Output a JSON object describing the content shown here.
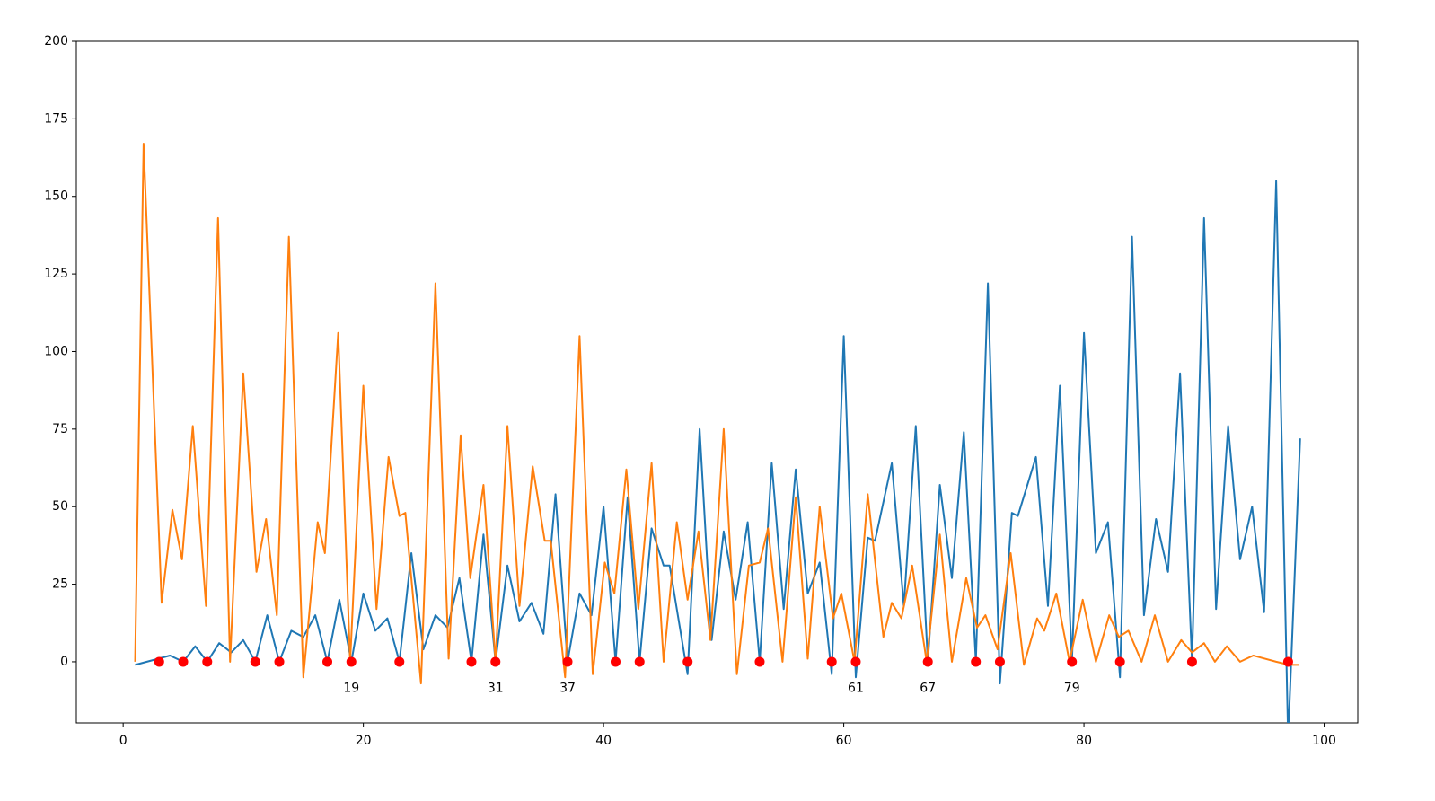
{
  "chart_data": {
    "type": "line",
    "xlim": [
      -3.9,
      102.8
    ],
    "ylim": [
      -19.7,
      200
    ],
    "xticks": [
      0,
      20,
      40,
      60,
      80,
      100
    ],
    "yticks": [
      0,
      25,
      50,
      75,
      100,
      125,
      150,
      175,
      200
    ],
    "series": [
      {
        "color": "#1f77b4",
        "x": [
          1,
          3.9,
          5,
          6,
          7,
          8,
          9,
          10,
          11,
          12,
          13,
          14,
          15,
          16,
          17,
          18,
          19,
          20,
          21,
          22,
          23,
          24,
          25,
          26,
          27,
          28,
          29,
          30,
          31,
          32,
          33,
          34,
          35,
          36,
          37,
          38,
          39,
          40,
          41,
          42,
          43,
          44,
          45,
          45.5,
          47,
          48,
          49,
          50,
          51,
          52,
          53,
          54,
          55,
          56,
          57,
          58,
          59,
          60,
          61,
          62,
          62.6,
          64,
          65,
          66,
          67,
          68,
          69,
          70,
          71,
          72,
          73,
          74,
          74.5,
          76,
          77,
          78,
          79,
          80,
          81,
          82,
          83,
          84,
          85,
          86,
          87,
          88,
          89,
          90,
          91,
          92,
          93,
          94,
          95,
          96,
          97,
          98
        ],
        "values": [
          -1,
          2,
          0,
          5,
          0,
          6,
          3,
          7,
          0,
          15,
          0,
          10,
          8,
          15,
          0,
          20,
          0,
          22,
          10,
          14,
          0,
          35,
          4,
          15,
          11,
          27,
          0,
          41,
          0,
          31,
          13,
          19,
          9,
          54,
          0,
          22,
          15,
          50,
          0,
          53,
          0,
          43,
          31,
          31,
          -4,
          75,
          7,
          42,
          20,
          45,
          0,
          64,
          17,
          62,
          22,
          32,
          -4,
          105,
          -5,
          40,
          39,
          64,
          18,
          76,
          0,
          57,
          27,
          74,
          0,
          122,
          -7,
          48,
          47,
          66,
          18,
          89,
          0,
          106,
          35,
          45,
          -5,
          137,
          15,
          46,
          29,
          93,
          0,
          143,
          17,
          76,
          33,
          50,
          16,
          155,
          -25,
          72
        ]
      },
      {
        "color": "#ff7f0e",
        "x": [
          1,
          1.7,
          3.2,
          4.1,
          4.9,
          5.8,
          6.9,
          7.9,
          8.9,
          10,
          11.1,
          11.9,
          12.8,
          13.8,
          15,
          16.2,
          16.8,
          17.9,
          18.9,
          20,
          21.1,
          22.1,
          23,
          23.5,
          24.8,
          26,
          27.1,
          28.1,
          28.9,
          30,
          31,
          32,
          33,
          34.1,
          35.1,
          35.6,
          36.8,
          38,
          39.1,
          40.1,
          40.9,
          41.9,
          42.9,
          44,
          45,
          46.1,
          47,
          47.9,
          48.9,
          50,
          51.1,
          52.1,
          53,
          53.7,
          54.9,
          56,
          57,
          58,
          59.1,
          59.8,
          60.9,
          62,
          63.3,
          64,
          64.8,
          65.7,
          66.9,
          68,
          69,
          70.2,
          71.1,
          71.8,
          72.8,
          73.9,
          75,
          76.1,
          76.7,
          77.7,
          78.8,
          79.9,
          81,
          82.1,
          82.9,
          83.7,
          84.8,
          85.9,
          87,
          88.1,
          89,
          90,
          90.9,
          91.9,
          93,
          94.1,
          96,
          97.1,
          97.9
        ],
        "values": [
          0,
          167,
          19,
          49,
          33,
          76,
          18,
          143,
          0,
          93,
          29,
          46,
          15,
          137,
          -5,
          45,
          35,
          106,
          0,
          89,
          17,
          66,
          47,
          48,
          -7,
          122,
          1,
          73,
          27,
          57,
          0,
          76,
          18,
          63,
          39,
          39,
          -5,
          105,
          -4,
          32,
          22,
          62,
          17,
          64,
          0,
          45,
          20,
          42,
          7,
          75,
          -4,
          31,
          32,
          43,
          0,
          53,
          1,
          50,
          14,
          22,
          0,
          54,
          8,
          19,
          14,
          31,
          0,
          41,
          0,
          27,
          11,
          15,
          4,
          35,
          -1,
          14,
          10,
          22,
          0,
          20,
          0,
          15,
          8,
          10,
          0,
          15,
          0,
          7,
          3,
          6,
          0,
          5,
          0,
          2,
          0,
          -1,
          -1
        ]
      }
    ],
    "markers": {
      "color": "#ff0000",
      "x": [
        3,
        5,
        7,
        11,
        13,
        17,
        19,
        23,
        29,
        31,
        37,
        41,
        43,
        47,
        53,
        59,
        61,
        67,
        71,
        73,
        79,
        83,
        89,
        97
      ],
      "values": [
        0,
        0,
        0,
        0,
        0,
        0,
        0,
        0,
        0,
        0,
        0,
        0,
        0,
        0,
        0,
        0,
        0,
        0,
        0,
        0,
        0,
        0,
        0,
        0
      ]
    },
    "annotations": [
      {
        "text": "19",
        "x": 19,
        "y": -8.5
      },
      {
        "text": "31",
        "x": 31,
        "y": -8.5
      },
      {
        "text": "37",
        "x": 37,
        "y": -8.5
      },
      {
        "text": "61",
        "x": 61,
        "y": -8.5
      },
      {
        "text": "67",
        "x": 67,
        "y": -8.5
      },
      {
        "text": "79",
        "x": 79,
        "y": -8.5
      }
    ]
  }
}
